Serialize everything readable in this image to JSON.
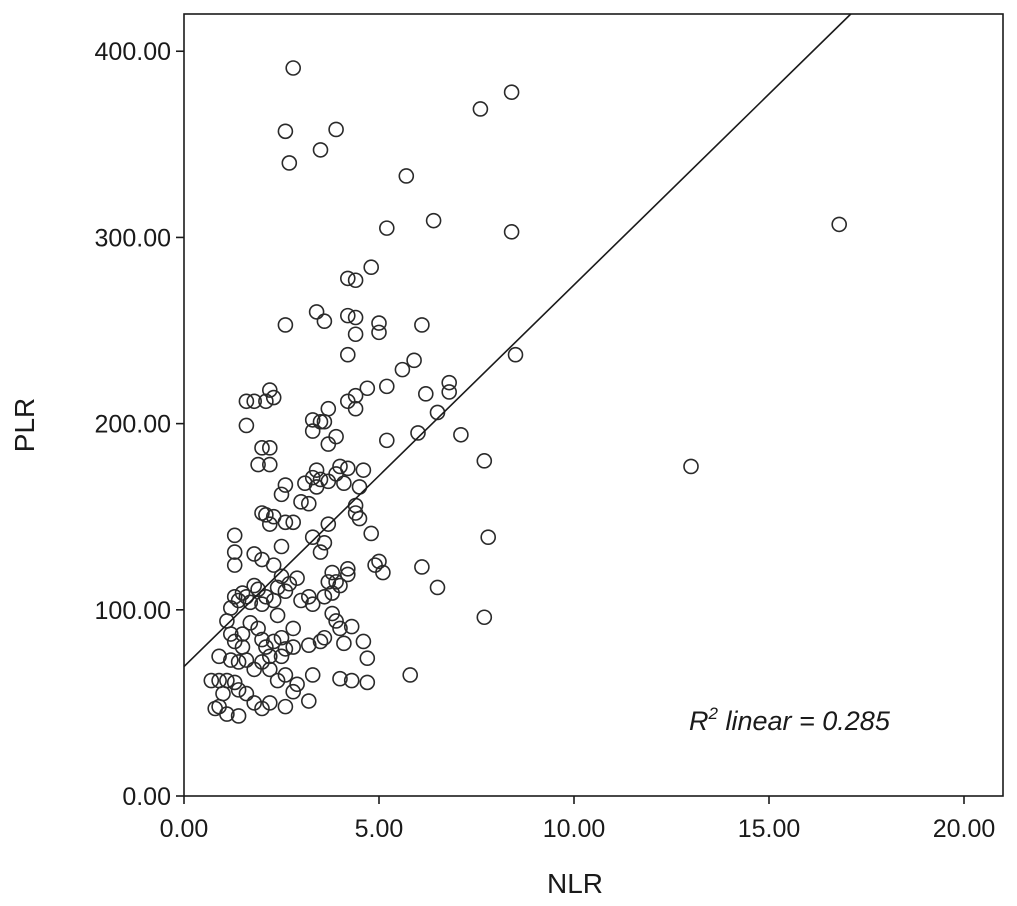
{
  "chart_data": {
    "type": "scatter",
    "title": "",
    "xlabel": "NLR",
    "ylabel": "PLR",
    "xlim": [
      0,
      21
    ],
    "ylim": [
      0,
      420
    ],
    "x_ticks": [
      "0.00",
      "5.00",
      "10.00",
      "15.00",
      "20.00"
    ],
    "x_tick_values": [
      0,
      5,
      10,
      15,
      20
    ],
    "y_ticks": [
      "0.00",
      "100.00",
      "200.00",
      "300.00",
      "400.00"
    ],
    "y_tick_values": [
      0,
      100,
      200,
      300,
      400
    ],
    "grid": false,
    "annotation": {
      "prefix": "R",
      "superscript": "2",
      "rest": " linear = 0.285"
    },
    "r_squared": 0.285,
    "fit_line": {
      "intercept": 69.5,
      "slope": 20.5
    },
    "points": [
      [
        2.8,
        391
      ],
      [
        8.4,
        378
      ],
      [
        7.6,
        369
      ],
      [
        2.6,
        357
      ],
      [
        3.9,
        358
      ],
      [
        3.5,
        347
      ],
      [
        2.7,
        340
      ],
      [
        5.7,
        333
      ],
      [
        16.8,
        307
      ],
      [
        6.4,
        309
      ],
      [
        5.2,
        305
      ],
      [
        8.4,
        303
      ],
      [
        4.8,
        284
      ],
      [
        4.2,
        278
      ],
      [
        4.4,
        277
      ],
      [
        3.4,
        260
      ],
      [
        4.2,
        258
      ],
      [
        4.4,
        257
      ],
      [
        3.6,
        255
      ],
      [
        2.6,
        253
      ],
      [
        5.0,
        254
      ],
      [
        6.1,
        253
      ],
      [
        5.0,
        249
      ],
      [
        4.4,
        248
      ],
      [
        8.5,
        237
      ],
      [
        4.2,
        237
      ],
      [
        5.9,
        234
      ],
      [
        5.6,
        229
      ],
      [
        6.8,
        222
      ],
      [
        4.7,
        219
      ],
      [
        5.2,
        220
      ],
      [
        6.8,
        217
      ],
      [
        2.2,
        218
      ],
      [
        6.2,
        216
      ],
      [
        4.4,
        215
      ],
      [
        2.3,
        214
      ],
      [
        4.2,
        212
      ],
      [
        1.6,
        212
      ],
      [
        1.8,
        212
      ],
      [
        2.1,
        212
      ],
      [
        3.7,
        208
      ],
      [
        4.4,
        208
      ],
      [
        6.5,
        206
      ],
      [
        3.3,
        202
      ],
      [
        3.5,
        201
      ],
      [
        3.6,
        201
      ],
      [
        1.6,
        199
      ],
      [
        7.1,
        194
      ],
      [
        6.0,
        195
      ],
      [
        3.3,
        196
      ],
      [
        3.9,
        193
      ],
      [
        5.2,
        191
      ],
      [
        3.7,
        189
      ],
      [
        2.0,
        187
      ],
      [
        2.2,
        187
      ],
      [
        7.7,
        180
      ],
      [
        1.9,
        178
      ],
      [
        2.2,
        178
      ],
      [
        13.0,
        177
      ],
      [
        4.0,
        177
      ],
      [
        3.4,
        175
      ],
      [
        4.2,
        176
      ],
      [
        4.6,
        175
      ],
      [
        3.9,
        173
      ],
      [
        3.3,
        171
      ],
      [
        3.5,
        170
      ],
      [
        3.7,
        169
      ],
      [
        3.1,
        168
      ],
      [
        3.4,
        166
      ],
      [
        4.5,
        166
      ],
      [
        2.6,
        167
      ],
      [
        4.1,
        168
      ],
      [
        2.5,
        162
      ],
      [
        3.0,
        158
      ],
      [
        4.4,
        156
      ],
      [
        4.4,
        152
      ],
      [
        4.5,
        149
      ],
      [
        3.2,
        157
      ],
      [
        2.0,
        152
      ],
      [
        2.1,
        151
      ],
      [
        2.3,
        150
      ],
      [
        2.6,
        147
      ],
      [
        2.8,
        147
      ],
      [
        2.2,
        146
      ],
      [
        3.7,
        146
      ],
      [
        1.3,
        140
      ],
      [
        4.8,
        141
      ],
      [
        7.8,
        139
      ],
      [
        2.5,
        134
      ],
      [
        3.3,
        139
      ],
      [
        3.6,
        136
      ],
      [
        3.5,
        131
      ],
      [
        1.8,
        130
      ],
      [
        2.0,
        127
      ],
      [
        2.3,
        124
      ],
      [
        4.2,
        122
      ],
      [
        1.3,
        124
      ],
      [
        6.1,
        123
      ],
      [
        1.3,
        131
      ],
      [
        4.9,
        124
      ],
      [
        5.0,
        126
      ],
      [
        5.1,
        120
      ],
      [
        3.8,
        120
      ],
      [
        3.9,
        115
      ],
      [
        4.2,
        119
      ],
      [
        3.7,
        115
      ],
      [
        4.0,
        113
      ],
      [
        3.8,
        109
      ],
      [
        3.6,
        107
      ],
      [
        3.0,
        105
      ],
      [
        3.2,
        107
      ],
      [
        3.3,
        103
      ],
      [
        2.6,
        110
      ],
      [
        2.7,
        114
      ],
      [
        2.9,
        117
      ],
      [
        2.5,
        118
      ],
      [
        2.4,
        112
      ],
      [
        2.3,
        105
      ],
      [
        2.1,
        107
      ],
      [
        2.0,
        103
      ],
      [
        1.9,
        111
      ],
      [
        1.8,
        113
      ],
      [
        1.7,
        104
      ],
      [
        1.6,
        107
      ],
      [
        1.5,
        109
      ],
      [
        1.4,
        105
      ],
      [
        1.3,
        107
      ],
      [
        1.2,
        101
      ],
      [
        1.1,
        94
      ],
      [
        1.2,
        87
      ],
      [
        1.3,
        83
      ],
      [
        1.5,
        87
      ],
      [
        1.7,
        93
      ],
      [
        1.9,
        90
      ],
      [
        2.0,
        84
      ],
      [
        2.1,
        80
      ],
      [
        2.3,
        83
      ],
      [
        2.5,
        85
      ],
      [
        2.6,
        79
      ],
      [
        2.8,
        80
      ],
      [
        3.2,
        81
      ],
      [
        3.5,
        83
      ],
      [
        3.6,
        85
      ],
      [
        4.0,
        90
      ],
      [
        4.3,
        91
      ],
      [
        4.6,
        83
      ],
      [
        4.1,
        82
      ],
      [
        3.9,
        94
      ],
      [
        3.8,
        98
      ],
      [
        2.0,
        72
      ],
      [
        2.2,
        75
      ],
      [
        1.6,
        73
      ],
      [
        1.4,
        72
      ],
      [
        1.2,
        73
      ],
      [
        1.1,
        62
      ],
      [
        1.3,
        61
      ],
      [
        1.4,
        57
      ],
      [
        0.9,
        62
      ],
      [
        0.7,
        62
      ],
      [
        1.0,
        55
      ],
      [
        0.8,
        47
      ],
      [
        0.9,
        48
      ],
      [
        1.1,
        44
      ],
      [
        1.4,
        43
      ],
      [
        1.6,
        55
      ],
      [
        1.8,
        50
      ],
      [
        2.0,
        47
      ],
      [
        2.2,
        50
      ],
      [
        2.4,
        62
      ],
      [
        2.6,
        65
      ],
      [
        2.8,
        56
      ],
      [
        3.2,
        51
      ],
      [
        3.3,
        65
      ],
      [
        4.0,
        63
      ],
      [
        4.3,
        62
      ],
      [
        4.7,
        61
      ],
      [
        4.7,
        74
      ],
      [
        5.8,
        65
      ],
      [
        7.7,
        96
      ],
      [
        6.5,
        112
      ],
      [
        2.8,
        90
      ],
      [
        2.4,
        97
      ],
      [
        1.8,
        68
      ],
      [
        2.2,
        68
      ],
      [
        2.6,
        48
      ],
      [
        2.5,
        75
      ],
      [
        1.5,
        80
      ],
      [
        0.9,
        75
      ],
      [
        2.9,
        60
      ]
    ]
  }
}
